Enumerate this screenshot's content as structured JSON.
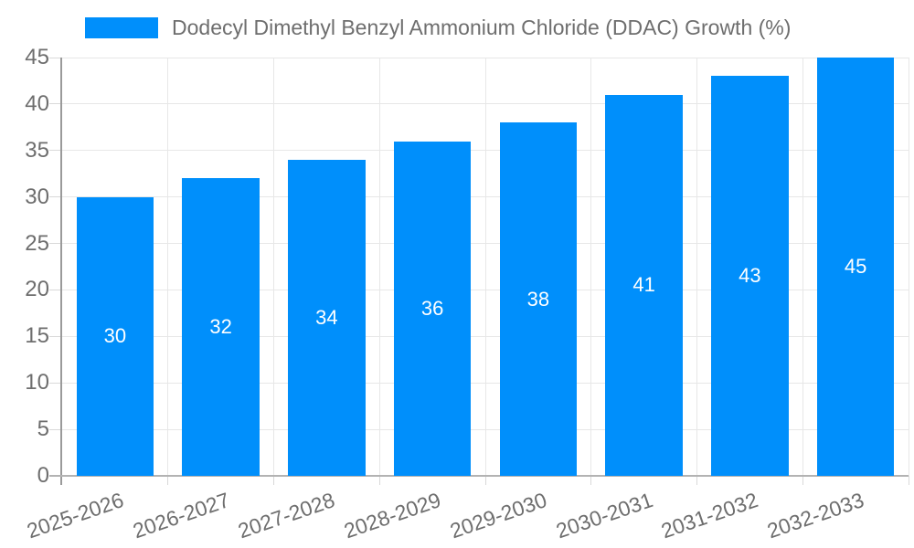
{
  "chart": {
    "legend": {
      "label": "Dodecyl Dimethyl Benzyl Ammonium Chloride (DDAC) Growth (%)"
    },
    "colors": {
      "bar": "#008FFB",
      "grid": "#e7e7e7",
      "tick": "#d9d9d9",
      "axis_y": "#9a9a9a",
      "axis_x": "#b3b3b3",
      "text": "#6e6e6e",
      "value_label": "#ffffff"
    }
  },
  "chart_data": {
    "type": "bar",
    "title": "Dodecyl Dimethyl Benzyl Ammonium Chloride (DDAC) Growth (%)",
    "categories": [
      "2025-2026",
      "2026-2027",
      "2027-2028",
      "2028-2029",
      "2029-2030",
      "2030-2031",
      "2031-2032",
      "2032-2033"
    ],
    "values": [
      30,
      32,
      34,
      36,
      38,
      41,
      43,
      45
    ],
    "xlabel": "",
    "ylabel": "",
    "ylim": [
      0,
      45
    ],
    "ytick_step": 5,
    "grid": true,
    "legend_position": "top-left",
    "value_labels": "inside-middle",
    "x_label_rotation_deg": -19
  }
}
